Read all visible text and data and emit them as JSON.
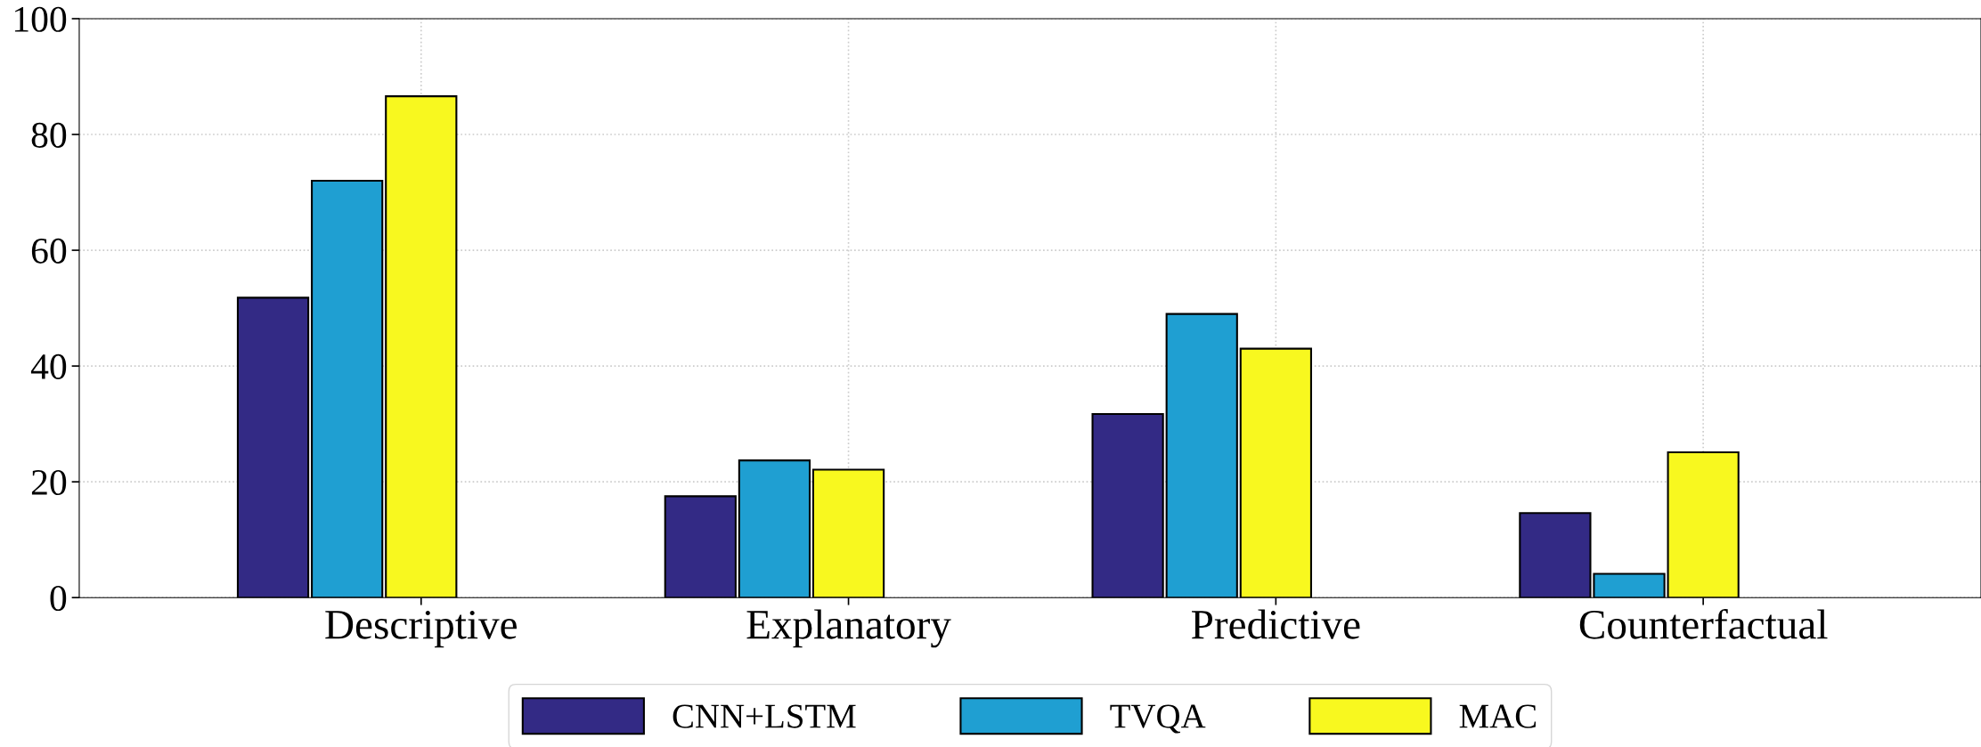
{
  "chart_data": {
    "type": "bar",
    "categories": [
      "Descriptive",
      "Explanatory",
      "Predictive",
      "Counterfactual"
    ],
    "series": [
      {
        "name": "CNN+LSTM",
        "color": "#332a85",
        "values": [
          51.8,
          17.5,
          31.7,
          14.6
        ]
      },
      {
        "name": "TVQA",
        "color": "#1f9fd2",
        "values": [
          72.0,
          23.7,
          49.0,
          4.1
        ]
      },
      {
        "name": "MAC",
        "color": "#f8f81f",
        "values": [
          86.6,
          22.1,
          43.0,
          25.1
        ]
      }
    ],
    "ylim": [
      0,
      100
    ],
    "yticks": [
      0,
      20,
      40,
      60,
      80,
      100
    ],
    "grid": true,
    "legend": "bottom"
  }
}
